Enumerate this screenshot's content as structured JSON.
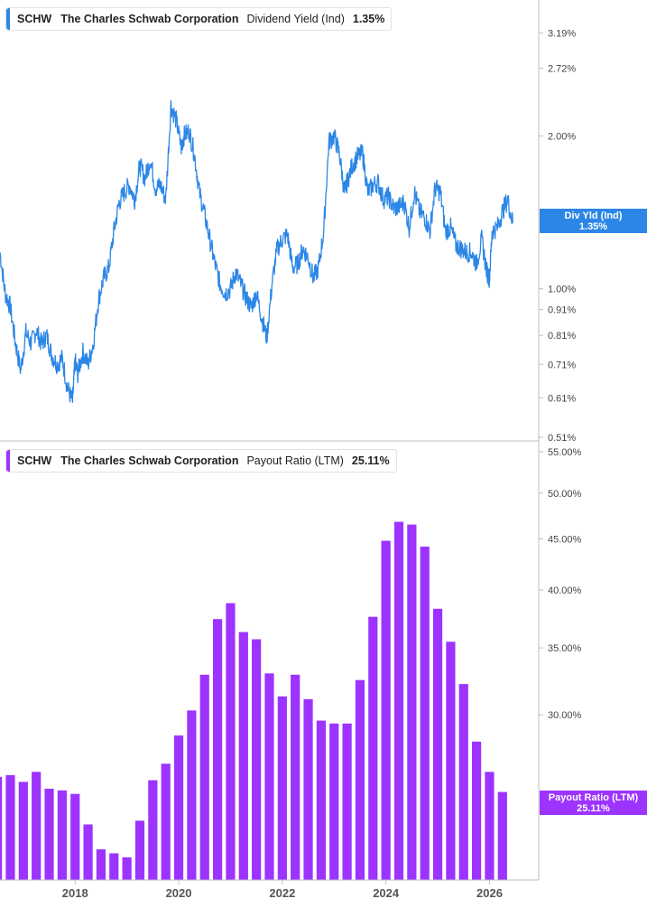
{
  "colors": {
    "yield_line": "#2b86e6",
    "payout_bar": "#9d33ff",
    "axis": "#bcbcbc",
    "tick_text": "#444444"
  },
  "panels": {
    "top": {
      "ticker": "SCHW",
      "company": "The Charles Schwab Corporation",
      "metric": "Dividend Yield (Ind)",
      "value": "1.35%",
      "tag_title": "Div Yld (Ind)",
      "tag_value": "1.35%"
    },
    "bottom": {
      "ticker": "SCHW",
      "company": "The Charles Schwab Corporation",
      "metric": "Payout Ratio (LTM)",
      "value": "25.11%",
      "tag_title": "Payout Ratio (LTM)",
      "tag_value": "25.11%"
    }
  },
  "chart_data": [
    {
      "type": "line",
      "title": "SCHW The Charles Schwab Corporation Dividend Yield (Ind) 1.35%",
      "series": [
        {
          "name": "Dividend Yield (Ind)",
          "unit": "%"
        }
      ],
      "y_scale": "log",
      "ylim": [
        0.51,
        3.5
      ],
      "y_ticks": [
        3.19,
        2.72,
        2.0,
        1.0,
        0.91,
        0.81,
        0.71,
        0.61,
        0.51
      ],
      "y_tick_labels": [
        "3.19%",
        "2.72%",
        "2.00%",
        "1.00%",
        "0.91%",
        "0.81%",
        "0.71%",
        "0.61%",
        "0.51%"
      ],
      "xlim": [
        2016.55,
        2026.95
      ],
      "x": [
        2016.55,
        2016.65,
        2016.75,
        2016.85,
        2016.95,
        2017.05,
        2017.15,
        2017.25,
        2017.35,
        2017.45,
        2017.55,
        2017.65,
        2017.75,
        2017.85,
        2017.95,
        2018.0,
        2018.05,
        2018.15,
        2018.25,
        2018.35,
        2018.45,
        2018.55,
        2018.65,
        2018.75,
        2018.85,
        2018.95,
        2019.05,
        2019.15,
        2019.25,
        2019.35,
        2019.45,
        2019.55,
        2019.65,
        2019.75,
        2019.85,
        2019.95,
        2020.05,
        2020.1,
        2020.2,
        2020.3,
        2020.4,
        2020.5,
        2020.6,
        2020.7,
        2020.8,
        2020.9,
        2021.0,
        2021.1,
        2021.2,
        2021.3,
        2021.4,
        2021.5,
        2021.6,
        2021.7,
        2021.8,
        2021.9,
        2022.0,
        2022.1,
        2022.2,
        2022.3,
        2022.4,
        2022.5,
        2022.6,
        2022.7,
        2022.8,
        2022.9,
        2023.0,
        2023.1,
        2023.2,
        2023.25,
        2023.35,
        2023.45,
        2023.55,
        2023.65,
        2023.75,
        2023.85,
        2023.95,
        2024.05,
        2024.15,
        2024.25,
        2024.35,
        2024.45,
        2024.55,
        2024.65,
        2024.75,
        2024.85,
        2024.95,
        2025.05,
        2025.15,
        2025.25,
        2025.35,
        2025.45,
        2025.55,
        2025.65,
        2025.75,
        2025.85,
        2025.95,
        2026.0,
        2026.05,
        2026.15,
        2026.25,
        2026.35,
        2026.45
      ],
      "y": [
        1.18,
        0.98,
        0.92,
        0.78,
        0.69,
        0.82,
        0.78,
        0.83,
        0.78,
        0.81,
        0.74,
        0.71,
        0.73,
        0.64,
        0.6,
        0.72,
        0.68,
        0.75,
        0.71,
        0.78,
        0.95,
        1.05,
        1.1,
        1.3,
        1.48,
        1.55,
        1.6,
        1.5,
        1.75,
        1.65,
        1.8,
        1.58,
        1.6,
        1.5,
        2.3,
        2.15,
        1.9,
        2.0,
        2.05,
        1.85,
        1.55,
        1.4,
        1.25,
        1.12,
        1.02,
        0.98,
        1.0,
        1.08,
        1.02,
        0.96,
        0.92,
        0.98,
        0.88,
        0.8,
        1.02,
        1.2,
        1.25,
        1.28,
        1.1,
        1.12,
        1.2,
        1.15,
        1.05,
        1.1,
        1.3,
        1.95,
        2.0,
        1.85,
        1.55,
        1.62,
        1.75,
        1.82,
        1.85,
        1.55,
        1.6,
        1.62,
        1.5,
        1.52,
        1.44,
        1.45,
        1.48,
        1.32,
        1.55,
        1.42,
        1.38,
        1.3,
        1.58,
        1.55,
        1.3,
        1.32,
        1.22,
        1.2,
        1.18,
        1.18,
        1.12,
        1.25,
        1.08,
        1.05,
        1.3,
        1.32,
        1.42,
        1.5,
        1.35
      ]
    },
    {
      "type": "bar",
      "title": "SCHW The Charles Schwab Corporation Payout Ratio (LTM) 25.11%",
      "series": [
        {
          "name": "Payout Ratio (LTM)",
          "unit": "%"
        }
      ],
      "y_scale": "log",
      "ylim": [
        20.5,
        55.0
      ],
      "y_ticks": [
        55.0,
        50.0,
        45.0,
        40.0,
        35.0,
        30.0
      ],
      "y_tick_labels": [
        "55.00%",
        "50.00%",
        "45.00%",
        "40.00%",
        "35.00%",
        "30.00%"
      ],
      "xlim": [
        2016.55,
        2026.95
      ],
      "x_ticks": [
        2018,
        2020,
        2022,
        2024,
        2026
      ],
      "x_tick_labels": [
        "2018",
        "2020",
        "2022",
        "2024",
        "2026"
      ],
      "x": [
        2016.5,
        2016.75,
        2017.0,
        2017.25,
        2017.5,
        2017.75,
        2018.0,
        2018.25,
        2018.5,
        2018.75,
        2019.0,
        2019.25,
        2019.5,
        2019.75,
        2020.0,
        2020.25,
        2020.5,
        2020.75,
        2021.0,
        2021.25,
        2021.5,
        2021.75,
        2022.0,
        2022.25,
        2022.5,
        2022.75,
        2023.0,
        2023.25,
        2023.5,
        2023.75,
        2024.0,
        2024.25,
        2024.5,
        2024.75,
        2025.0,
        2025.25,
        2025.5,
        2025.75,
        2026.0,
        2026.25
      ],
      "values": [
        26.0,
        26.1,
        25.7,
        26.3,
        25.3,
        25.2,
        25.0,
        23.3,
        22.0,
        21.8,
        21.6,
        23.5,
        25.8,
        26.8,
        28.6,
        30.3,
        32.9,
        37.4,
        38.8,
        36.3,
        35.7,
        33.0,
        31.3,
        32.9,
        31.1,
        29.6,
        29.4,
        29.4,
        32.5,
        37.6,
        44.8,
        46.8,
        46.5,
        44.2,
        38.3,
        35.5,
        32.2,
        28.2,
        26.3,
        25.11
      ]
    }
  ]
}
